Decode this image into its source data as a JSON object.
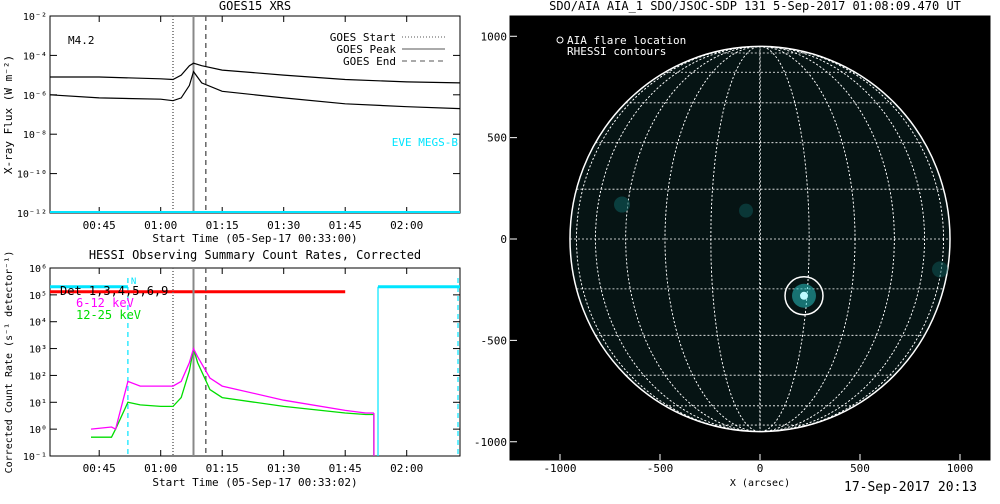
{
  "chart_data": [
    {
      "type": "line",
      "title": "GOES15 XRS",
      "xlabel": "Start Time (05-Sep-17 00:33:00)",
      "ylabel": "X-ray Flux (W m⁻²)",
      "yscale": "log",
      "ylim": [
        1e-12,
        0.01
      ],
      "xlim": [
        "00:33",
        "02:13"
      ],
      "xticks": [
        "00:45",
        "01:00",
        "01:15",
        "01:30",
        "01:45",
        "02:00"
      ],
      "yticks": [
        "10⁻¹²",
        "10⁻¹⁰",
        "10⁻⁸",
        "10⁻⁶",
        "10⁻⁴",
        "10⁻²"
      ],
      "annotation": "M4.2",
      "side_label": "EVE MEGS-B",
      "legend_position": "top-right",
      "legend": [
        {
          "label": "GOES Start",
          "style": "dotted"
        },
        {
          "label": "GOES Peak",
          "style": "solid"
        },
        {
          "label": "GOES End",
          "style": "dashed"
        }
      ],
      "markers": {
        "start": "01:03",
        "peak": "01:08",
        "end": "01:11"
      },
      "x": [
        "00:33",
        "00:45",
        "01:00",
        "01:03",
        "01:05",
        "01:07",
        "01:08",
        "01:10",
        "01:15",
        "01:30",
        "01:45",
        "02:00",
        "02:13"
      ],
      "series": [
        {
          "values": [
            8e-06,
            8e-06,
            6.5e-06,
            6e-06,
            1e-05,
            3e-05,
            4e-05,
            3e-05,
            1.8e-05,
            1e-05,
            6e-06,
            4.5e-06,
            4e-06
          ]
        },
        {
          "values": [
            1e-06,
            7e-07,
            6e-07,
            5e-07,
            7e-07,
            3e-06,
            1.5e-05,
            4e-06,
            1.5e-06,
            7e-07,
            3.5e-07,
            2.5e-07,
            2e-07
          ]
        }
      ]
    },
    {
      "type": "line",
      "title": "HESSI Observing Summary Count Rates, Corrected",
      "xlabel": "Start Time (05-Sep-17 00:33:02)",
      "ylabel": "Corrected Count Rate (s⁻¹ detector⁻¹)",
      "yscale": "log",
      "ylim": [
        0.1,
        1000000
      ],
      "xlim": [
        "00:33",
        "02:13"
      ],
      "xticks": [
        "00:45",
        "01:00",
        "01:15",
        "01:30",
        "01:45",
        "02:00"
      ],
      "yticks": [
        "10⁻¹",
        "10⁰",
        "10¹",
        "10²",
        "10³",
        "10⁴",
        "10⁵",
        "10⁶"
      ],
      "legend_position": "top-left",
      "detectors_label": "Det 1,3,4,5,6,9",
      "night_marker": "N",
      "legend": [
        {
          "label": "6-12 keV",
          "color": "#ff00ff"
        },
        {
          "label": "12-25 keV",
          "color": "#00dd00"
        }
      ],
      "markers": {
        "start": "01:03",
        "peak": "01:08",
        "end": "01:11"
      },
      "x": [
        "00:43",
        "00:48",
        "00:49",
        "00:52",
        "00:55",
        "01:00",
        "01:03",
        "01:05",
        "01:07",
        "01:08",
        "01:09",
        "01:12",
        "01:15",
        "01:30",
        "01:45",
        "01:50",
        "01:52"
      ],
      "series": [
        {
          "name": "6-12 keV",
          "values": [
            1,
            1.2,
            1,
            60,
            40,
            40,
            40,
            60,
            300,
            1000,
            500,
            80,
            40,
            12,
            5,
            4,
            4
          ]
        },
        {
          "name": "12-25 keV",
          "values": [
            0.5,
            0.5,
            1,
            10,
            8,
            7,
            7,
            15,
            150,
            1000,
            300,
            30,
            15,
            7,
            4,
            3.5,
            3.5
          ]
        }
      ]
    },
    {
      "type": "scatter",
      "title": "SDO/AIA AIA_1 SDO/JSOC-SDP 131  5-Sep-2017 01:08:09.470 UT",
      "xlabel": "X (arcsec)",
      "ylabel": "",
      "xlim": [
        -1250,
        1150
      ],
      "ylim": [
        -1090,
        1100
      ],
      "xticks": [
        "-1000",
        "-500",
        "0",
        "500",
        "1000"
      ],
      "yticks": [
        "-1000",
        "-500",
        "0",
        "500",
        "1000"
      ],
      "legend_position": "top-left",
      "legend": [
        {
          "label": "AIA flare location",
          "marker": "circle"
        },
        {
          "label": "RHESSI contours"
        }
      ],
      "flare_location": {
        "x": 220,
        "y": -280
      }
    }
  ],
  "timestamp": "17-Sep-2017 20:13"
}
